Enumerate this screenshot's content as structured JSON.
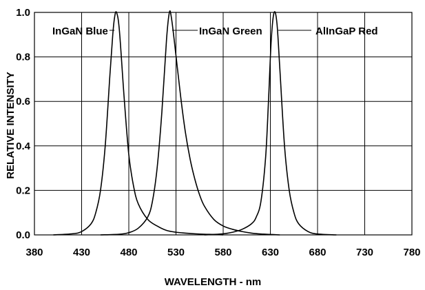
{
  "chart_data": {
    "type": "line",
    "xlabel": "WAVELENGTH - nm",
    "ylabel": "RELATIVE INTENSITY",
    "xlim": [
      380,
      780
    ],
    "ylim": [
      0,
      1.0
    ],
    "x_ticks": [
      380,
      430,
      480,
      530,
      580,
      630,
      680,
      730,
      780
    ],
    "x_tick_labels": [
      "380",
      "430",
      "480",
      "530",
      "580",
      "630",
      "680",
      "730",
      "780"
    ],
    "y_ticks": [
      0,
      0.2,
      0.4,
      0.6,
      0.8,
      1.0
    ],
    "y_tick_labels": [
      "0.0",
      "0.2",
      "0.4",
      "0.6",
      "0.8",
      "1.0"
    ],
    "grid": true,
    "series": [
      {
        "name": "InGaN Blue",
        "x": [
          400,
          420,
          430,
          440,
          445,
          450,
          455,
          460,
          463,
          465,
          467,
          470,
          475,
          480,
          485,
          490,
          500,
          510,
          520,
          530,
          540,
          550,
          560,
          570,
          580
        ],
        "y": [
          0,
          0.005,
          0.015,
          0.05,
          0.1,
          0.2,
          0.4,
          0.72,
          0.9,
          0.98,
          1.0,
          0.92,
          0.62,
          0.36,
          0.22,
          0.14,
          0.07,
          0.04,
          0.02,
          0.012,
          0.008,
          0.005,
          0.003,
          0.002,
          0
        ]
      },
      {
        "name": "InGaN Green",
        "x": [
          450,
          470,
          480,
          490,
          500,
          505,
          510,
          515,
          520,
          523,
          525,
          528,
          535,
          540,
          545,
          550,
          555,
          560,
          570,
          580,
          590,
          600,
          610,
          620,
          630,
          640
        ],
        "y": [
          0,
          0.003,
          0.01,
          0.03,
          0.08,
          0.15,
          0.3,
          0.55,
          0.88,
          1.0,
          0.98,
          0.88,
          0.62,
          0.46,
          0.34,
          0.25,
          0.18,
          0.13,
          0.07,
          0.04,
          0.025,
          0.015,
          0.008,
          0.004,
          0.002,
          0
        ]
      },
      {
        "name": "AlInGaP Red",
        "x": [
          560,
          580,
          590,
          600,
          610,
          615,
          620,
          625,
          628,
          631,
          634,
          637,
          640,
          645,
          650,
          655,
          660,
          670,
          680,
          700
        ],
        "y": [
          0,
          0.005,
          0.012,
          0.025,
          0.05,
          0.08,
          0.15,
          0.35,
          0.6,
          0.88,
          1.0,
          0.95,
          0.75,
          0.4,
          0.2,
          0.1,
          0.05,
          0.015,
          0.004,
          0
        ]
      }
    ],
    "annotations": [
      {
        "text": "InGaN Blue",
        "series": "InGaN Blue"
      },
      {
        "text": "InGaN Green",
        "series": "InGaN Green"
      },
      {
        "text": "AlInGaP Red",
        "series": "AlInGaP Red"
      }
    ]
  }
}
